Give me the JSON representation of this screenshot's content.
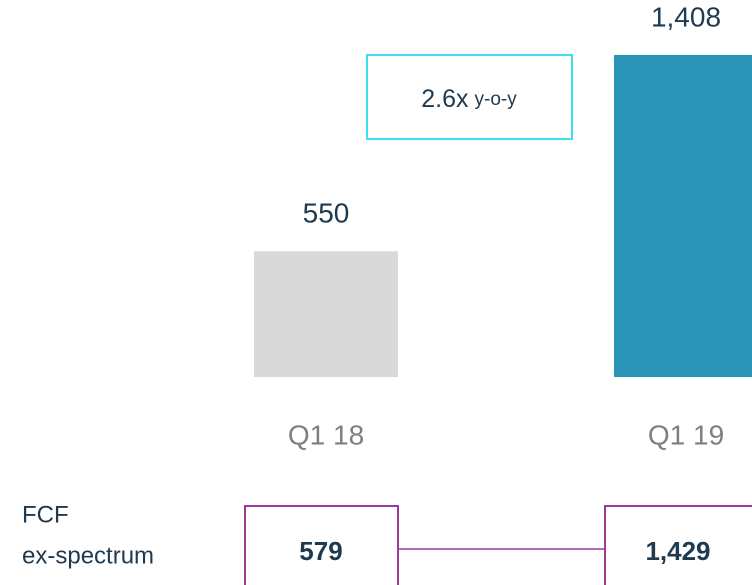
{
  "chart_data": {
    "type": "bar",
    "categories": [
      "Q1 18",
      "Q1 19"
    ],
    "values": [
      550,
      1408
    ],
    "value_labels": [
      "550",
      "1,408"
    ],
    "colors": [
      "#d9d9d9",
      "#2a93b8"
    ],
    "ylim": [
      0,
      1408
    ],
    "annotation": {
      "text": "2.6x",
      "suffix": "y-o-y"
    },
    "fcf": {
      "label": [
        "FCF",
        "ex-spectrum"
      ],
      "values": [
        579,
        1429
      ],
      "value_labels": [
        "579",
        "1,429"
      ]
    }
  }
}
